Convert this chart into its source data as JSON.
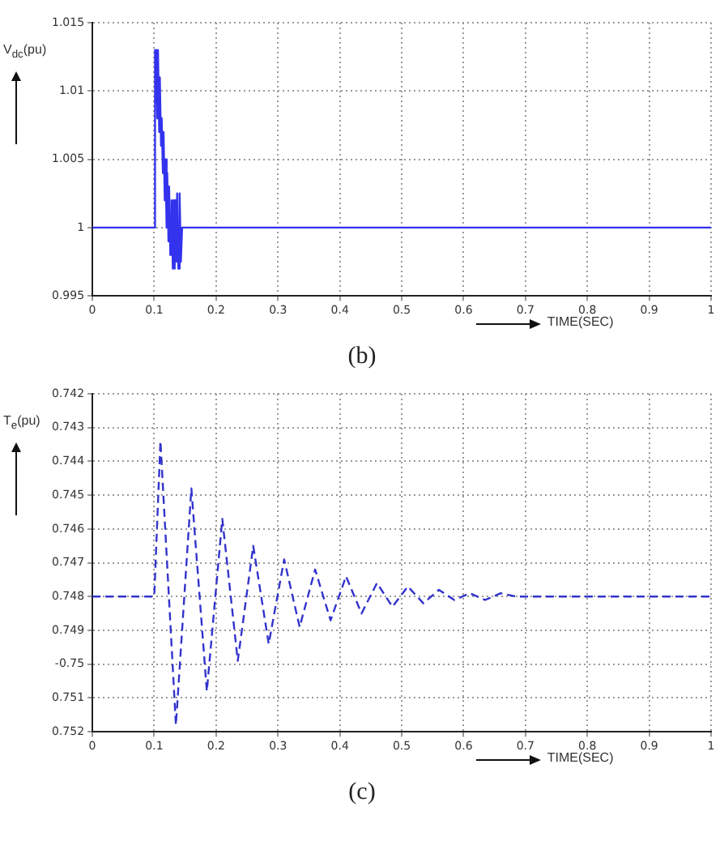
{
  "chart_data": [
    {
      "type": "line",
      "ylabel": "V$_{dc}$(pu)",
      "xlabel": "TIME(SEC)",
      "annotations": [
        "(b)"
      ],
      "grid": true,
      "legend": false,
      "line_style": "solid",
      "xlim": [
        0,
        1
      ],
      "xticks": [
        0,
        0.1,
        0.2,
        0.3,
        0.4,
        0.5,
        0.6,
        0.7,
        0.8,
        0.9,
        1
      ],
      "ylim": [
        0.995,
        1.015
      ],
      "yticks": [
        0.995,
        1,
        1.005,
        1.01,
        1.015
      ],
      "series": [
        {
          "color": "#3333ee",
          "x": [
            0,
            0.1,
            0.1005,
            0.102,
            0.103,
            0.105,
            0.106,
            0.108,
            0.109,
            0.111,
            0.112,
            0.114,
            0.115,
            0.117,
            0.118,
            0.12,
            0.121,
            0.123,
            0.124,
            0.126,
            0.128,
            0.13,
            0.131,
            0.133,
            0.134,
            0.136,
            0.137,
            0.139,
            0.141,
            0.143,
            0.145,
            0.15,
            1
          ],
          "values": [
            1,
            1,
            1.013,
            1.009,
            1.013,
            1.008,
            1.013,
            1.007,
            1.011,
            1.006,
            1.008,
            1.004,
            1.007,
            1.002,
            1.005,
            1,
            1.004,
            0.999,
            1.003,
            0.998,
            1.002,
            0.997,
            1.002,
            0.997,
            1.002,
            0.9975,
            1.0025,
            0.997,
            1.0025,
            0.9975,
            1,
            1,
            1
          ]
        }
      ]
    },
    {
      "type": "line",
      "ylabel": "T$_{e}$(pu)",
      "xlabel": "TIME(SEC)",
      "annotations": [
        "(c)"
      ],
      "grid": true,
      "legend": false,
      "line_style": "dashed",
      "xlim": [
        0,
        1
      ],
      "xticks": [
        0,
        0.1,
        0.2,
        0.3,
        0.4,
        0.5,
        0.6,
        0.7,
        0.8,
        0.9,
        1
      ],
      "ylim": [
        -0.752,
        -0.742
      ],
      "yticks": [
        {
          "value": -0.752,
          "label": "0.752"
        },
        {
          "value": -0.751,
          "label": "0.751"
        },
        {
          "value": -0.75,
          "label": "-0.75"
        },
        {
          "value": -0.749,
          "label": "0.749"
        },
        {
          "value": -0.748,
          "label": "0.748"
        },
        {
          "value": -0.747,
          "label": "0.747"
        },
        {
          "value": -0.746,
          "label": "0.746"
        },
        {
          "value": -0.745,
          "label": "0.745"
        },
        {
          "value": -0.744,
          "label": "0.744"
        },
        {
          "value": -0.743,
          "label": "0.743"
        },
        {
          "value": -0.742,
          "label": "0.742"
        }
      ],
      "series": [
        {
          "color": "#3333cc",
          "x": [
            0,
            0.1,
            0.11,
            0.135,
            0.16,
            0.185,
            0.21,
            0.235,
            0.26,
            0.285,
            0.31,
            0.335,
            0.36,
            0.385,
            0.41,
            0.435,
            0.46,
            0.485,
            0.51,
            0.535,
            0.56,
            0.585,
            0.61,
            0.635,
            0.66,
            0.685,
            1
          ],
          "values": [
            -0.748,
            -0.748,
            -0.7434,
            -0.7518,
            -0.7448,
            -0.7508,
            -0.7457,
            -0.7499,
            -0.7465,
            -0.7494,
            -0.7469,
            -0.7489,
            -0.7472,
            -0.7487,
            -0.7474,
            -0.7485,
            -0.7476,
            -0.7483,
            -0.7477,
            -0.7482,
            -0.7478,
            -0.7481,
            -0.7479,
            -0.7481,
            -0.7479,
            -0.748,
            -0.748
          ]
        }
      ]
    }
  ]
}
